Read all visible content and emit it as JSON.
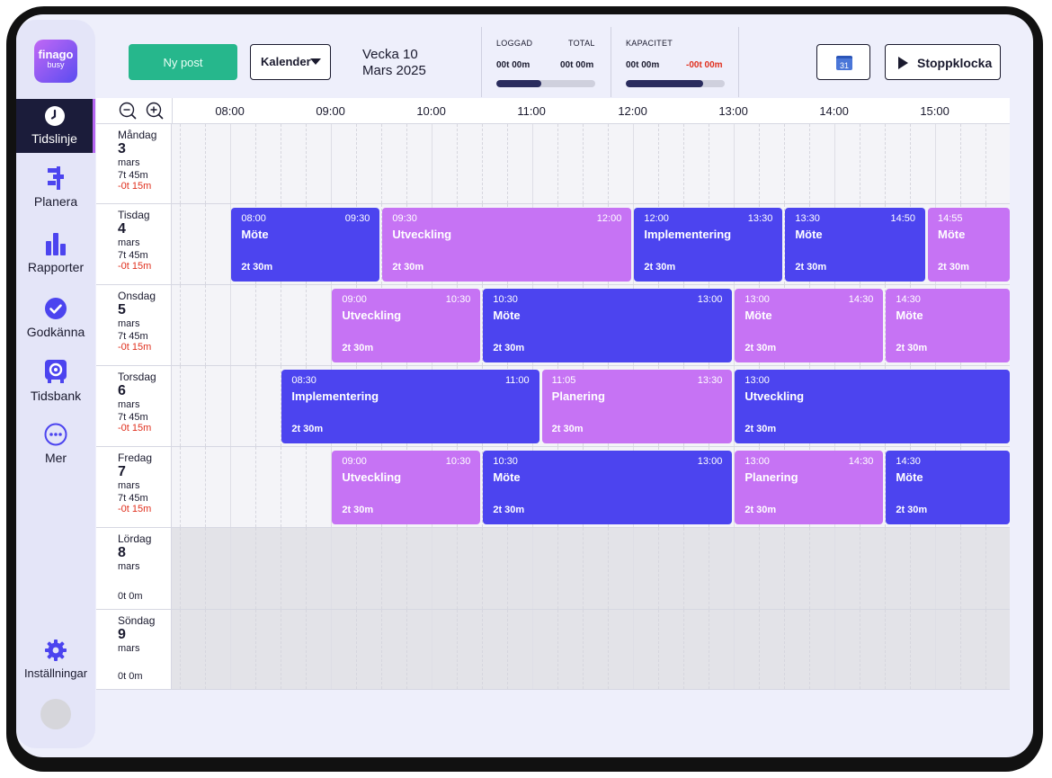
{
  "app": {
    "logo_line1": "finago",
    "logo_line2": "busy"
  },
  "sidebar": {
    "items": [
      {
        "key": "tidslinje",
        "label": "Tidslinje",
        "icon": "clock-icon",
        "active": true
      },
      {
        "key": "planera",
        "label": "Planera",
        "icon": "planner-icon"
      },
      {
        "key": "rapporter",
        "label": "Rapporter",
        "icon": "bar-chart-icon"
      },
      {
        "key": "godkanna",
        "label": "Godkänna",
        "icon": "check-circle-icon"
      },
      {
        "key": "tidsbank",
        "label": "Tidsbank",
        "icon": "piggy-bank-icon"
      },
      {
        "key": "mer",
        "label": "Mer",
        "icon": "more-dots-icon"
      }
    ],
    "settings_label": "Inställningar"
  },
  "toolbar": {
    "new_post_label": "Ny post",
    "view_select_label": "Kalender",
    "week_label": "Vecka 10",
    "month_label": "Mars 2025",
    "stopwatch_label": "Stoppklocka",
    "calendar_icon_day": "31"
  },
  "stats": {
    "logged_label": "LOGGAD",
    "logged_value": "00t 00m",
    "total_label": "TOTAL",
    "total_value": "00t 00m",
    "logged_progress": 0.45,
    "capacity_label": "KAPACITET",
    "capacity_value": "00t 00m",
    "capacity_diff": "-00t 00m",
    "capacity_progress": 0.78,
    "colors": {
      "bar_fill": "#2a2c5e",
      "negative": "#e0301e"
    }
  },
  "timeline": {
    "hours": [
      "08:00",
      "09:00",
      "10:00",
      "11:00",
      "12:00",
      "13:00",
      "14:00",
      "15:00"
    ],
    "colors": {
      "blue": "#4c44ef",
      "violet": "#c673f4",
      "new_post": "#26b78c"
    },
    "days": [
      {
        "name": "Måndag",
        "num": "3",
        "month": "mars",
        "logged": "7t 45m",
        "diff": "-0t 15m",
        "events": []
      },
      {
        "name": "Tisdag",
        "num": "4",
        "month": "mars",
        "logged": "7t 45m",
        "diff": "-0t 15m",
        "events": [
          {
            "start": "08:00",
            "end": "09:30",
            "title": "Möte",
            "duration": "2t 30m",
            "color": "blue"
          },
          {
            "start": "09:30",
            "end": "12:00",
            "title": "Utveckling",
            "duration": "2t 30m",
            "color": "violet"
          },
          {
            "start": "12:00",
            "end": "13:30",
            "title": "Implementering",
            "duration": "2t 30m",
            "color": "blue"
          },
          {
            "start": "13:30",
            "end": "14:50",
            "title": "Möte",
            "duration": "2t 30m",
            "color": "blue"
          },
          {
            "start": "14:55",
            "end": "",
            "title": "Möte",
            "duration": "2t 30m",
            "color": "violet"
          }
        ]
      },
      {
        "name": "Onsdag",
        "num": "5",
        "month": "mars",
        "logged": "7t 45m",
        "diff": "-0t 15m",
        "events": [
          {
            "start": "09:00",
            "end": "10:30",
            "title": "Utveckling",
            "duration": "2t 30m",
            "color": "violet"
          },
          {
            "start": "10:30",
            "end": "13:00",
            "title": "Möte",
            "duration": "2t 30m",
            "color": "blue"
          },
          {
            "start": "13:00",
            "end": "14:30",
            "title": "Möte",
            "duration": "2t 30m",
            "color": "violet"
          },
          {
            "start": "14:30",
            "end": "",
            "title": "Möte",
            "duration": "2t 30m",
            "color": "violet"
          }
        ]
      },
      {
        "name": "Torsdag",
        "num": "6",
        "month": "mars",
        "logged": "7t 45m",
        "diff": "-0t 15m",
        "events": [
          {
            "start": "08:30",
            "end": "11:00",
            "title": "Implementering",
            "duration": "2t 30m",
            "color": "blue"
          },
          {
            "start": "11:05",
            "end": "13:30",
            "title": "Planering",
            "duration": "2t 30m",
            "color": "violet"
          },
          {
            "start": "13:00",
            "end": "",
            "title": "Utveckling",
            "duration": "2t 30m",
            "color": "blue"
          }
        ]
      },
      {
        "name": "Fredag",
        "num": "7",
        "month": "mars",
        "logged": "7t 45m",
        "diff": "-0t 15m",
        "events": [
          {
            "start": "09:00",
            "end": "10:30",
            "title": "Utveckling",
            "duration": "2t 30m",
            "color": "violet"
          },
          {
            "start": "10:30",
            "end": "13:00",
            "title": "Möte",
            "duration": "2t 30m",
            "color": "blue"
          },
          {
            "start": "13:00",
            "end": "14:30",
            "title": "Planering",
            "duration": "2t 30m",
            "color": "violet"
          },
          {
            "start": "14:30",
            "end": "",
            "title": "Möte",
            "duration": "2t 30m",
            "color": "blue"
          }
        ]
      },
      {
        "name": "Lördag",
        "num": "8",
        "month": "mars",
        "total": "0t 0m",
        "weekend": true,
        "events": []
      },
      {
        "name": "Söndag",
        "num": "9",
        "month": "mars",
        "total": "0t 0m",
        "weekend": true,
        "events": []
      }
    ]
  }
}
